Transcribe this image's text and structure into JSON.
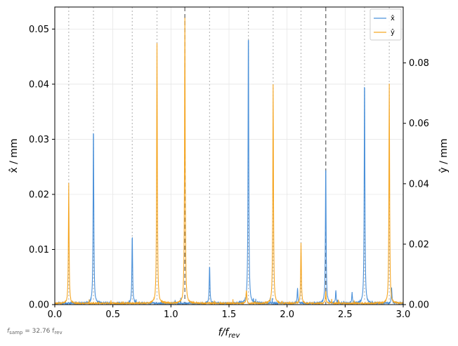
{
  "chart_data": {
    "type": "line",
    "xlabel": "f/f",
    "xlabel_sub": "rev",
    "ylabel_left": "x̂ / mm",
    "ylabel_right": "ŷ / mm",
    "xlim": [
      0,
      3.0
    ],
    "ylim_left": [
      0,
      0.054
    ],
    "ylim_right": [
      0,
      0.0985
    ],
    "x_ticks": [
      0.0,
      0.5,
      1.0,
      1.5,
      2.0,
      2.5,
      3.0
    ],
    "x_tick_labels": [
      "0.0",
      "0.5",
      "1.0",
      "1.5",
      "2.0",
      "2.5",
      "3.0"
    ],
    "y_left_ticks": [
      0.0,
      0.01,
      0.02,
      0.03,
      0.04,
      0.05
    ],
    "y_left_tick_labels": [
      "0.00",
      "0.01",
      "0.02",
      "0.03",
      "0.04",
      "0.05"
    ],
    "y_right_ticks": [
      0.0,
      0.02,
      0.04,
      0.06,
      0.08
    ],
    "y_right_tick_labels": [
      "0.00",
      "0.02",
      "0.04",
      "0.06",
      "0.08"
    ],
    "grid": true,
    "legend_position": "top-right",
    "vlines_dotted": [
      0.12,
      0.333,
      0.667,
      0.88,
      1.333,
      1.667,
      1.88,
      2.12,
      2.667,
      2.88
    ],
    "vlines_dashed": [
      1.12,
      2.333
    ],
    "series": [
      {
        "name": "x̂",
        "axis": "left",
        "color": "#4a90d9",
        "noise": 0.0003,
        "peaks": [
          {
            "x": 0.333,
            "y": 0.0332
          },
          {
            "x": 0.667,
            "y": 0.0128
          },
          {
            "x": 1.333,
            "y": 0.0071
          },
          {
            "x": 1.667,
            "y": 0.0515
          },
          {
            "x": 2.09,
            "y": 0.0028
          },
          {
            "x": 2.333,
            "y": 0.026
          },
          {
            "x": 2.42,
            "y": 0.0023
          },
          {
            "x": 2.56,
            "y": 0.0019
          },
          {
            "x": 2.667,
            "y": 0.0422
          },
          {
            "x": 2.9,
            "y": 0.0027
          }
        ]
      },
      {
        "name": "ŷ",
        "axis": "right",
        "color": "#f5a623",
        "noise": 0.0005,
        "peaks": [
          {
            "x": 0.12,
            "y": 0.0398
          },
          {
            "x": 0.88,
            "y": 0.0862
          },
          {
            "x": 1.12,
            "y": 0.0943
          },
          {
            "x": 1.65,
            "y": 0.0045
          },
          {
            "x": 1.88,
            "y": 0.0725
          },
          {
            "x": 2.12,
            "y": 0.0202
          },
          {
            "x": 2.333,
            "y": 0.0042
          },
          {
            "x": 2.88,
            "y": 0.0725
          }
        ]
      }
    ]
  },
  "footnote": {
    "prefix": "f",
    "prefix_sub": "samp",
    "middle": " = 32.76 f",
    "suffix_sub": "rev"
  }
}
